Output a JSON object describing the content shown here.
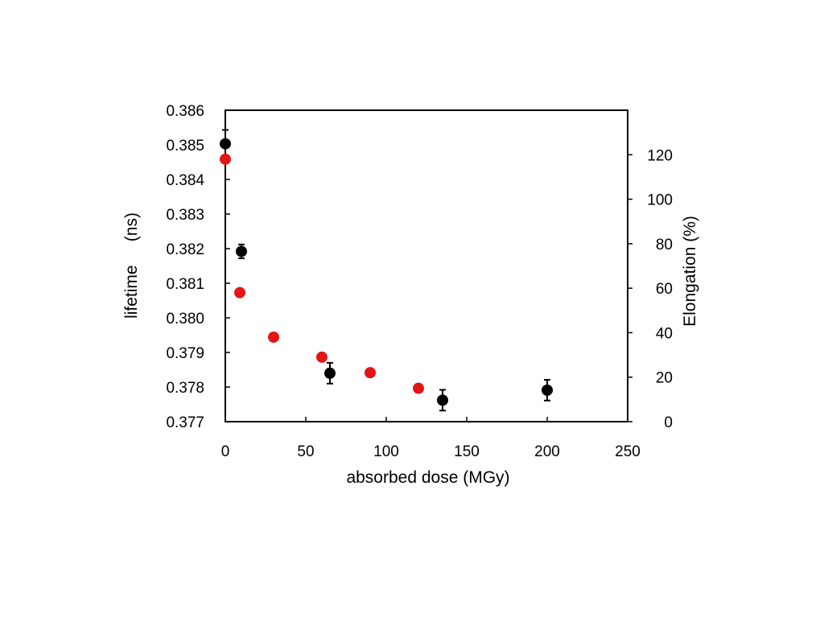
{
  "chart_data": {
    "type": "scatter",
    "title": "",
    "xlabel": "absorbed dose (MGy)",
    "ylabel_left": "lifetime     (ns)",
    "ylabel_right": "Elongation (%)",
    "xlim": [
      0,
      250
    ],
    "ylim_left": [
      0.377,
      0.386
    ],
    "ylim_right": [
      0,
      140
    ],
    "x_ticks": [
      "0",
      "50",
      "100",
      "150",
      "200",
      "250"
    ],
    "y_left_ticks": [
      "0.377",
      "0.378",
      "0.379",
      "0.380",
      "0.381",
      "0.382",
      "0.383",
      "0.384",
      "0.385",
      "0.386"
    ],
    "y_right_ticks": [
      "0",
      "20",
      "40",
      "60",
      "80",
      "100",
      "120"
    ],
    "grid": false,
    "series": [
      {
        "axis": "left",
        "color": "#000000",
        "marker": "circle",
        "points": [
          {
            "x": 0,
            "y": 0.38503,
            "err": 0.0004
          },
          {
            "x": 10,
            "y": 0.38192,
            "err": 0.0002
          },
          {
            "x": 65,
            "y": 0.3784,
            "err": 0.0003
          },
          {
            "x": 135,
            "y": 0.37762,
            "err": 0.0003
          },
          {
            "x": 200,
            "y": 0.37791,
            "err": 0.0003
          }
        ]
      },
      {
        "axis": "right",
        "color": "#e41515",
        "marker": "circle",
        "points": [
          {
            "x": 0,
            "y": 118
          },
          {
            "x": 9,
            "y": 58
          },
          {
            "x": 30,
            "y": 38
          },
          {
            "x": 60,
            "y": 29
          },
          {
            "x": 90,
            "y": 22
          },
          {
            "x": 120,
            "y": 15
          }
        ]
      }
    ]
  }
}
